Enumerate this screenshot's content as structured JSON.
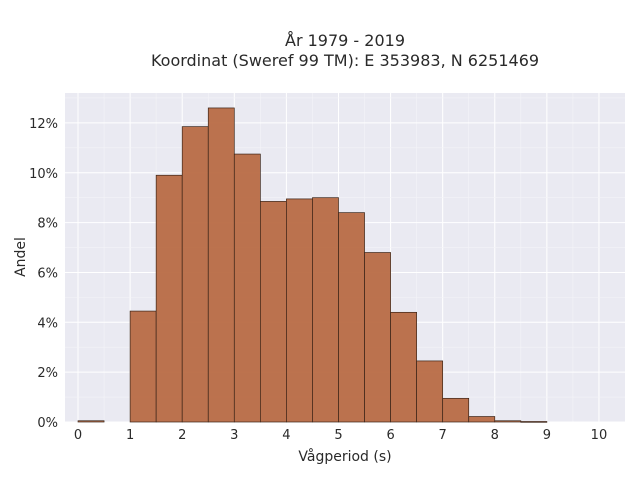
{
  "chart_data": {
    "type": "bar",
    "title_lines": [
      "År 1979 - 2019",
      "Koordinat (Sweref 99 TM): E 353983, N 6251469"
    ],
    "xlabel": "Vågperiod (s)",
    "ylabel": "Andel",
    "xlim": [
      -0.25,
      10.5
    ],
    "ylim": [
      0,
      13.2
    ],
    "x_ticks": [
      0,
      1,
      2,
      3,
      4,
      5,
      6,
      7,
      8,
      9,
      10
    ],
    "x_tick_labels": [
      "0",
      "1",
      "2",
      "3",
      "4",
      "5",
      "6",
      "7",
      "8",
      "9",
      "10"
    ],
    "y_ticks": [
      0,
      2,
      4,
      6,
      8,
      10,
      12
    ],
    "y_tick_labels": [
      "0%",
      "2%",
      "4%",
      "6%",
      "8%",
      "10%",
      "12%"
    ],
    "grid": true,
    "bar_color": "#b86b45",
    "bar_edge_color": "#3b2418",
    "background_color": "#eaeaf2",
    "bins": [
      {
        "x0": 0.0,
        "x1": 0.5,
        "value": 0.05
      },
      {
        "x0": 0.5,
        "x1": 1.0,
        "value": 0.0
      },
      {
        "x0": 1.0,
        "x1": 1.5,
        "value": 4.45
      },
      {
        "x0": 1.5,
        "x1": 2.0,
        "value": 9.9
      },
      {
        "x0": 2.0,
        "x1": 2.5,
        "value": 11.85
      },
      {
        "x0": 2.5,
        "x1": 3.0,
        "value": 12.6
      },
      {
        "x0": 3.0,
        "x1": 3.5,
        "value": 10.75
      },
      {
        "x0": 3.5,
        "x1": 4.0,
        "value": 8.85
      },
      {
        "x0": 4.0,
        "x1": 4.5,
        "value": 8.95
      },
      {
        "x0": 4.5,
        "x1": 5.0,
        "value": 9.0
      },
      {
        "x0": 5.0,
        "x1": 5.5,
        "value": 8.4
      },
      {
        "x0": 5.5,
        "x1": 6.0,
        "value": 6.8
      },
      {
        "x0": 6.0,
        "x1": 6.5,
        "value": 4.4
      },
      {
        "x0": 6.5,
        "x1": 7.0,
        "value": 2.45
      },
      {
        "x0": 7.0,
        "x1": 7.5,
        "value": 0.95
      },
      {
        "x0": 7.5,
        "x1": 8.0,
        "value": 0.22
      },
      {
        "x0": 8.0,
        "x1": 8.5,
        "value": 0.05
      },
      {
        "x0": 8.5,
        "x1": 9.0,
        "value": 0.02
      }
    ]
  }
}
